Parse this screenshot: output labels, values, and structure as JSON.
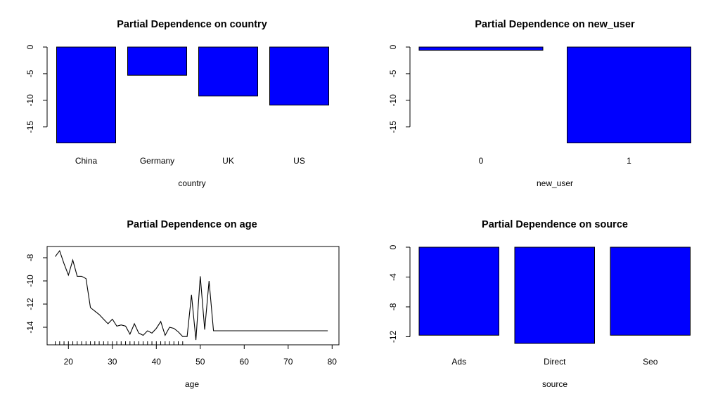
{
  "chart_data": [
    {
      "type": "bar",
      "title": "Partial Dependence on country",
      "xlabel": "country",
      "ylabel": "",
      "categories": [
        "China",
        "Germany",
        "UK",
        "US"
      ],
      "values": [
        -18.0,
        -5.3,
        -9.2,
        -10.9
      ],
      "ylim": [
        -18,
        0
      ],
      "yticks": [
        0,
        -5,
        -10,
        -15
      ],
      "ytick_labels": [
        "0",
        "-5",
        "-10",
        "-15"
      ],
      "bar_color": "#0000ff",
      "grid": false
    },
    {
      "type": "bar",
      "title": "Partial Dependence on new_user",
      "xlabel": "new_user",
      "ylabel": "",
      "categories": [
        "0",
        "1"
      ],
      "values": [
        -0.6,
        -18.0
      ],
      "ylim": [
        -18,
        0
      ],
      "yticks": [
        0,
        -5,
        -10,
        -15
      ],
      "ytick_labels": [
        "0",
        "-5",
        "-10",
        "-15"
      ],
      "bar_color": "#0000ff",
      "grid": false
    },
    {
      "type": "line",
      "title": "Partial Dependence on age",
      "xlabel": "age",
      "ylabel": "",
      "x": [
        17,
        18,
        19,
        20,
        21,
        22,
        23,
        24,
        25,
        26,
        27,
        28,
        29,
        30,
        31,
        32,
        33,
        34,
        35,
        36,
        37,
        38,
        39,
        40,
        41,
        42,
        43,
        44,
        45,
        46,
        47,
        48,
        49,
        50,
        51,
        52,
        53,
        54,
        55,
        56,
        57,
        58,
        59,
        60,
        61,
        62,
        79
      ],
      "y": [
        -7.9,
        -7.4,
        -8.5,
        -9.5,
        -8.2,
        -9.6,
        -9.6,
        -9.8,
        -12.3,
        -12.6,
        -12.9,
        -13.3,
        -13.7,
        -13.3,
        -13.9,
        -13.8,
        -13.9,
        -14.6,
        -13.7,
        -14.5,
        -14.7,
        -14.3,
        -14.5,
        -14.1,
        -13.5,
        -14.7,
        -14.0,
        -14.1,
        -14.4,
        -14.8,
        -14.8,
        -11.2,
        -15.1,
        -9.6,
        -14.2,
        -10.0,
        -14.3,
        -14.3,
        -14.3,
        -14.3,
        -14.3,
        -14.3,
        -14.3,
        -14.3,
        -14.3,
        -14.3,
        -14.3
      ],
      "xlim": [
        16,
        80
      ],
      "ylim": [
        -15.2,
        -7.1
      ],
      "xticks": [
        20,
        30,
        40,
        50,
        60,
        70,
        80
      ],
      "yticks": [
        -8,
        -10,
        -12,
        -14
      ],
      "ytick_labels": [
        "-8",
        "-10",
        "-12",
        "-14"
      ],
      "rug": [
        17,
        18,
        19,
        20,
        21,
        22,
        23,
        24,
        25,
        26,
        27,
        28,
        29,
        30,
        31,
        32,
        33,
        34,
        35,
        36,
        37,
        38,
        39,
        40,
        41,
        42,
        43,
        44,
        45,
        46
      ],
      "line_color": "#000000",
      "grid": false
    },
    {
      "type": "bar",
      "title": "Partial Dependence on source",
      "xlabel": "source",
      "ylabel": "",
      "categories": [
        "Ads",
        "Direct",
        "Seo"
      ],
      "values": [
        -11.8,
        -12.9,
        -11.8
      ],
      "ylim": [
        -12.9,
        0
      ],
      "yticks": [
        0,
        -4,
        -8,
        -12
      ],
      "ytick_labels": [
        "0",
        "-4",
        "-8",
        "-12"
      ],
      "bar_color": "#0000ff",
      "grid": false
    }
  ]
}
